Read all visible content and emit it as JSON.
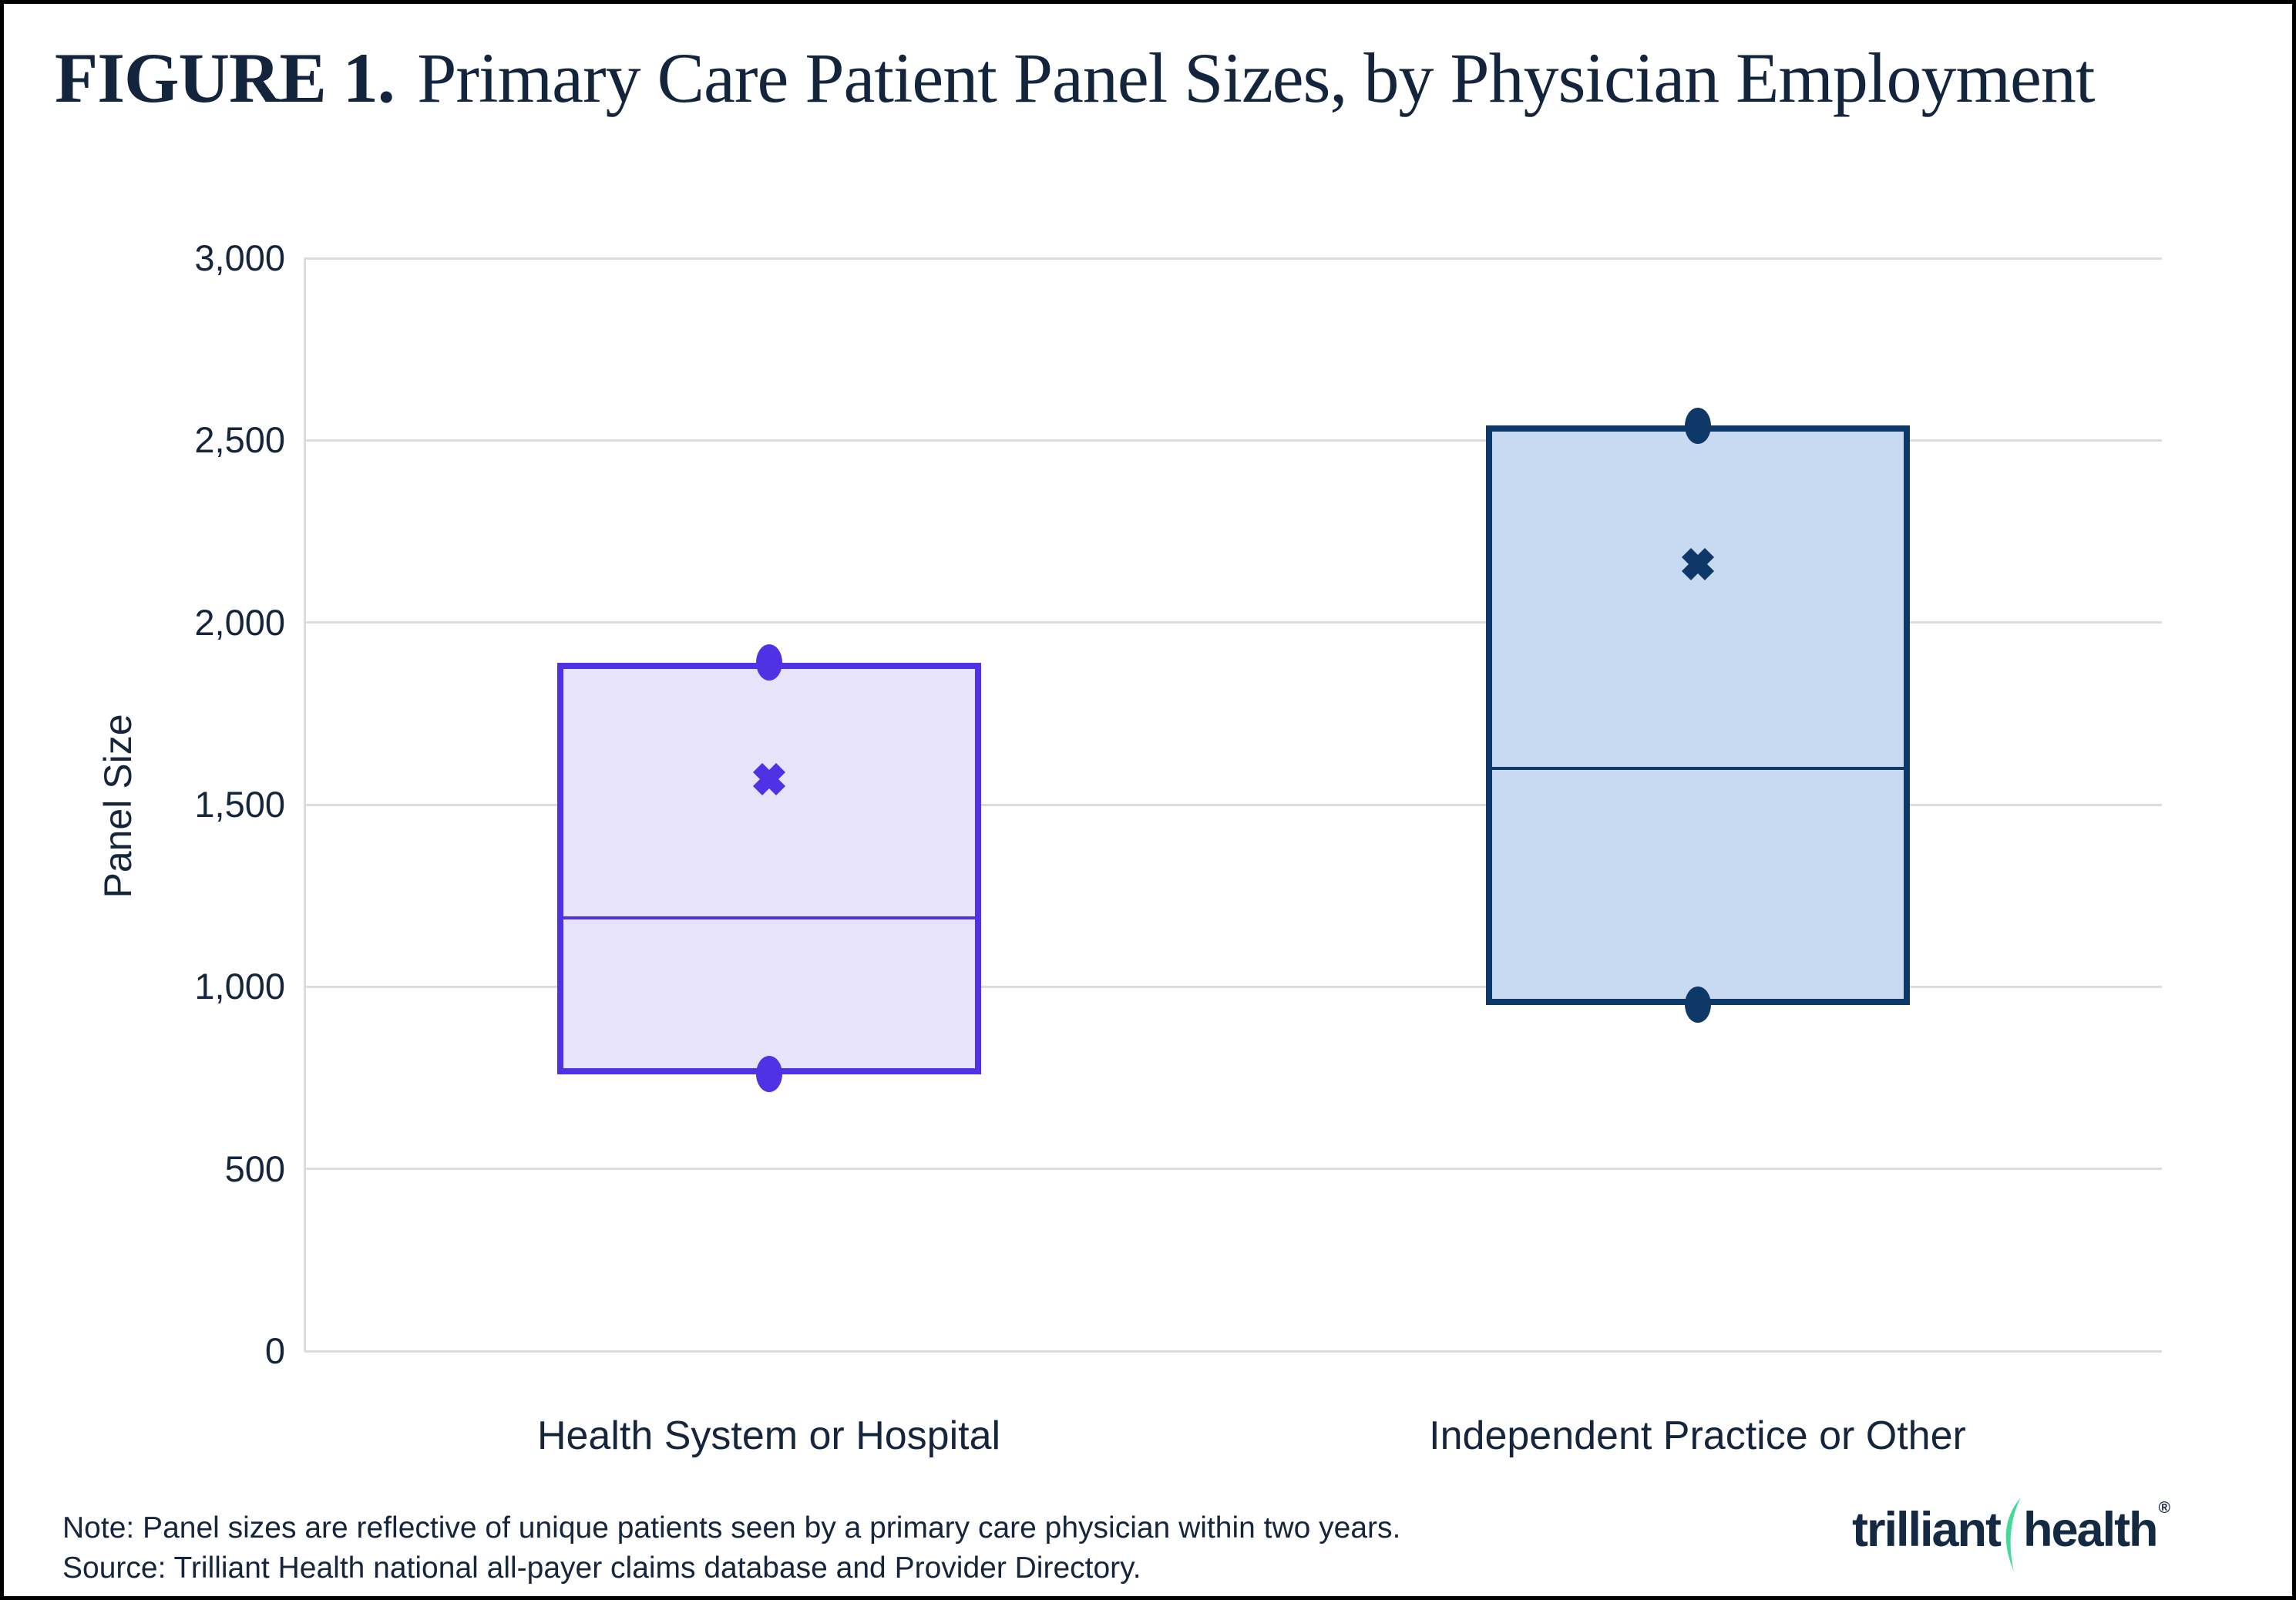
{
  "figure": {
    "label": "FIGURE 1.",
    "title_rest": "Primary Care Patient Panel Sizes, by Physician Employment"
  },
  "chart_data": {
    "type": "boxplot",
    "title": "Primary Care Patient Panel Sizes, by Physician Employment",
    "xlabel": "",
    "ylabel": "Panel Size",
    "ylim": [
      0,
      3000
    ],
    "grid": "horizontal",
    "legend_position": "none",
    "yticks": [
      {
        "value": 0,
        "label": "0"
      },
      {
        "value": 500,
        "label": "500"
      },
      {
        "value": 1000,
        "label": "1,000"
      },
      {
        "value": 1500,
        "label": "1,500"
      },
      {
        "value": 2000,
        "label": "2,000"
      },
      {
        "value": 2500,
        "label": "2,500"
      },
      {
        "value": 3000,
        "label": "3,000"
      }
    ],
    "categories": [
      "Health System or Hospital",
      "Independent Practice or Other"
    ],
    "series": [
      {
        "name": "Health System or Hospital",
        "whisker_low": 760,
        "q1": 760,
        "median": 1190,
        "mean": 1570,
        "q3": 1890,
        "whisker_high": 1890,
        "box_fill": "#E6E3FB",
        "box_border": "#4E32E4"
      },
      {
        "name": "Independent Practice or Other",
        "whisker_low": 950,
        "q1": 950,
        "median": 1600,
        "mean": 2160,
        "q3": 2540,
        "whisker_high": 2540,
        "box_fill": "#C8D9F2",
        "box_border": "#0D3867"
      }
    ]
  },
  "colors": {
    "gridline": "#DCDCDC",
    "axisline": "#DCDCDC",
    "text": "#15263C",
    "title": "#13243D",
    "frame": "#000000"
  },
  "footer": {
    "note": "Note: Panel sizes are reflective of unique patients seen by a primary care physician within two years.",
    "source": "Source: Trilliant Health national all-payer claims database and Provider Directory."
  },
  "logo": {
    "first": "trilliant",
    "second": "health",
    "registered": "®",
    "swoosh_color": "#3EDC96",
    "text_color": "#142A42"
  }
}
